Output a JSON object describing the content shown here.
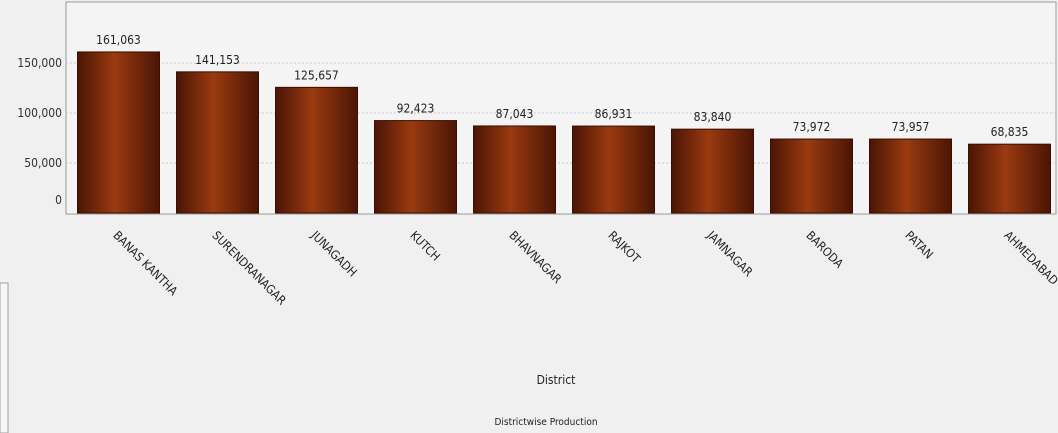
{
  "chart_data": {
    "type": "bar",
    "categories": [
      "BANAS KANTHA",
      "SURENDRANAGAR",
      "JUNAGADH",
      "KUTCH",
      "BHAVNAGAR",
      "RAJKOT",
      "JAMNAGAR",
      "BARODA",
      "PATAN",
      "AHMEDABAD"
    ],
    "values": [
      161063,
      141153,
      125657,
      92423,
      87043,
      86931,
      83840,
      73972,
      73957,
      68835
    ],
    "value_labels": [
      "161,063",
      "141,153",
      "125,657",
      "92,423",
      "87,043",
      "86,931",
      "83,840",
      "73,972",
      "73,957",
      "68,835"
    ],
    "y_ticks": [
      0,
      50000,
      100000,
      150000
    ],
    "y_tick_labels": [
      "0",
      "50,000",
      "100,000",
      "150,000"
    ],
    "ylim": [
      0,
      185000
    ],
    "xlabel": "District",
    "ylabel": "",
    "caption": "Districtwise Production",
    "grid": true,
    "legend": "none",
    "bar_color": "#8a2e0c",
    "bar_edge_color": "#3a0e02"
  }
}
